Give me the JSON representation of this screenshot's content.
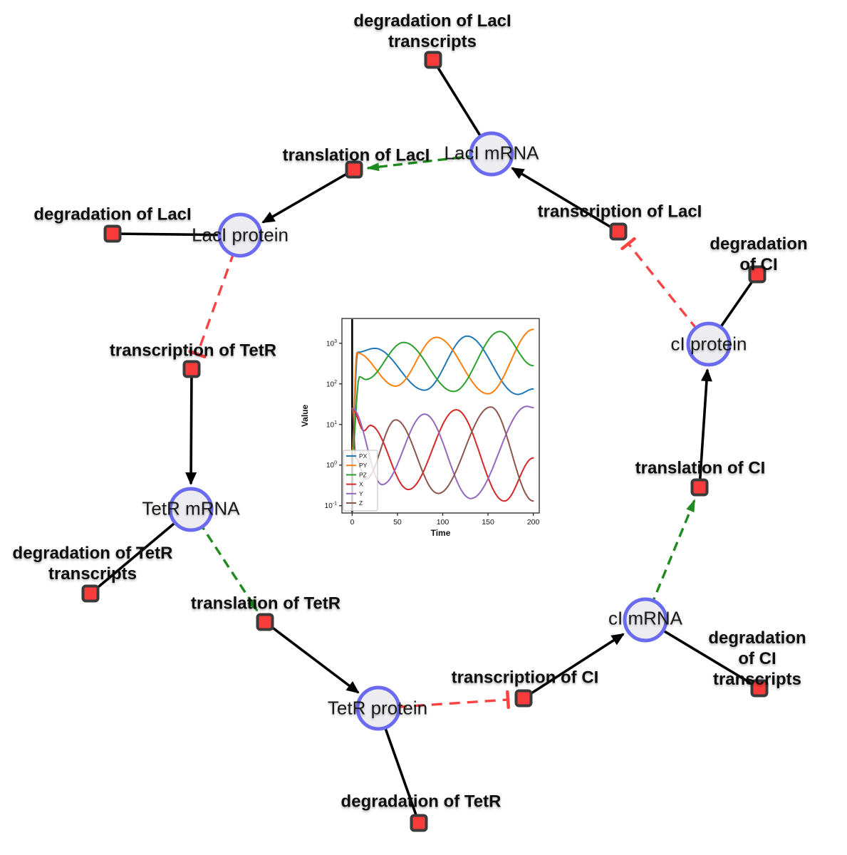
{
  "network": {
    "species": [
      {
        "label": "LacI mRNA"
      },
      {
        "label": "LacI protein"
      },
      {
        "label": "TetR mRNA"
      },
      {
        "label": "TetR protein"
      },
      {
        "label": "cI mRNA"
      },
      {
        "label": "cI protein"
      }
    ],
    "reactions": [
      {
        "label": "degradation of LacI\ntranscripts"
      },
      {
        "label": "translation of LacI"
      },
      {
        "label": "degradation of LacI"
      },
      {
        "label": "transcription of LacI"
      },
      {
        "label": "degradation of CI"
      },
      {
        "label": "transcription of TetR"
      },
      {
        "label": "degradation of TetR\ntranscripts"
      },
      {
        "label": "translation of TetR"
      },
      {
        "label": "degradation of TetR"
      },
      {
        "label": "transcription of CI"
      },
      {
        "label": "degradation of CI\ntranscripts"
      },
      {
        "label": "translation of CI"
      }
    ],
    "colors": {
      "species_fill": "#ededf1",
      "species_border": "#6b6bf2",
      "reaction_fill": "#f93b3b",
      "reaction_border": "#3b3b3b",
      "edge_solid": "#000000",
      "edge_production": "#1f8b1f",
      "edge_inhibition": "#fc4343"
    }
  },
  "chart_data": {
    "type": "line",
    "title": "",
    "xlabel": "Time",
    "ylabel": "Value",
    "yscale": "log",
    "grid": false,
    "legend_position": "lower-left",
    "x_ticks": [
      0,
      50,
      100,
      150,
      200
    ],
    "y_tick_exponents": [
      -1,
      0,
      1,
      2,
      3
    ],
    "xlim": [
      -11.3,
      206.6
    ],
    "ylim_log10": [
      -1.18,
      3.61
    ],
    "interpolation": "cosine-in-log-space-through-keypoints",
    "annotations": [
      {
        "type": "vline",
        "x": 0,
        "color": "#000000"
      }
    ],
    "series": [
      {
        "name": "PX",
        "color": "#1f77b4",
        "keypoints": [
          [
            0,
            2
          ],
          [
            6,
            600
          ],
          [
            25,
            750
          ],
          [
            80,
            70
          ],
          [
            127,
            1500
          ],
          [
            183,
            55
          ],
          [
            200,
            75
          ]
        ]
      },
      {
        "name": "PY",
        "color": "#ff7f0e",
        "keypoints": [
          [
            0,
            2
          ],
          [
            5,
            580
          ],
          [
            48,
            88
          ],
          [
            93,
            1400
          ],
          [
            150,
            57
          ],
          [
            200,
            2200
          ]
        ]
      },
      {
        "name": "PZ",
        "color": "#2ca02c",
        "keypoints": [
          [
            0,
            2
          ],
          [
            8,
            150
          ],
          [
            15,
            128
          ],
          [
            57,
            1050
          ],
          [
            112,
            65
          ],
          [
            163,
            1950
          ],
          [
            200,
            280
          ]
        ]
      },
      {
        "name": "X",
        "color": "#d62728",
        "keypoints": [
          [
            0,
            25
          ],
          [
            13,
            7
          ],
          [
            20,
            9.5
          ],
          [
            62,
            0.25
          ],
          [
            115,
            23
          ],
          [
            168,
            0.13
          ],
          [
            200,
            1.5
          ]
        ]
      },
      {
        "name": "Y",
        "color": "#9467bd",
        "keypoints": [
          [
            0,
            25
          ],
          [
            33,
            0.33
          ],
          [
            80,
            18
          ],
          [
            131,
            0.15
          ],
          [
            193,
            28
          ],
          [
            200,
            26
          ]
        ]
      },
      {
        "name": "Z",
        "color": "#8c564b",
        "keypoints": [
          [
            0,
            25
          ],
          [
            4,
            1.5
          ],
          [
            15,
            0.45
          ],
          [
            48,
            13
          ],
          [
            95,
            0.2
          ],
          [
            153,
            27
          ],
          [
            200,
            0.13
          ]
        ]
      }
    ]
  }
}
